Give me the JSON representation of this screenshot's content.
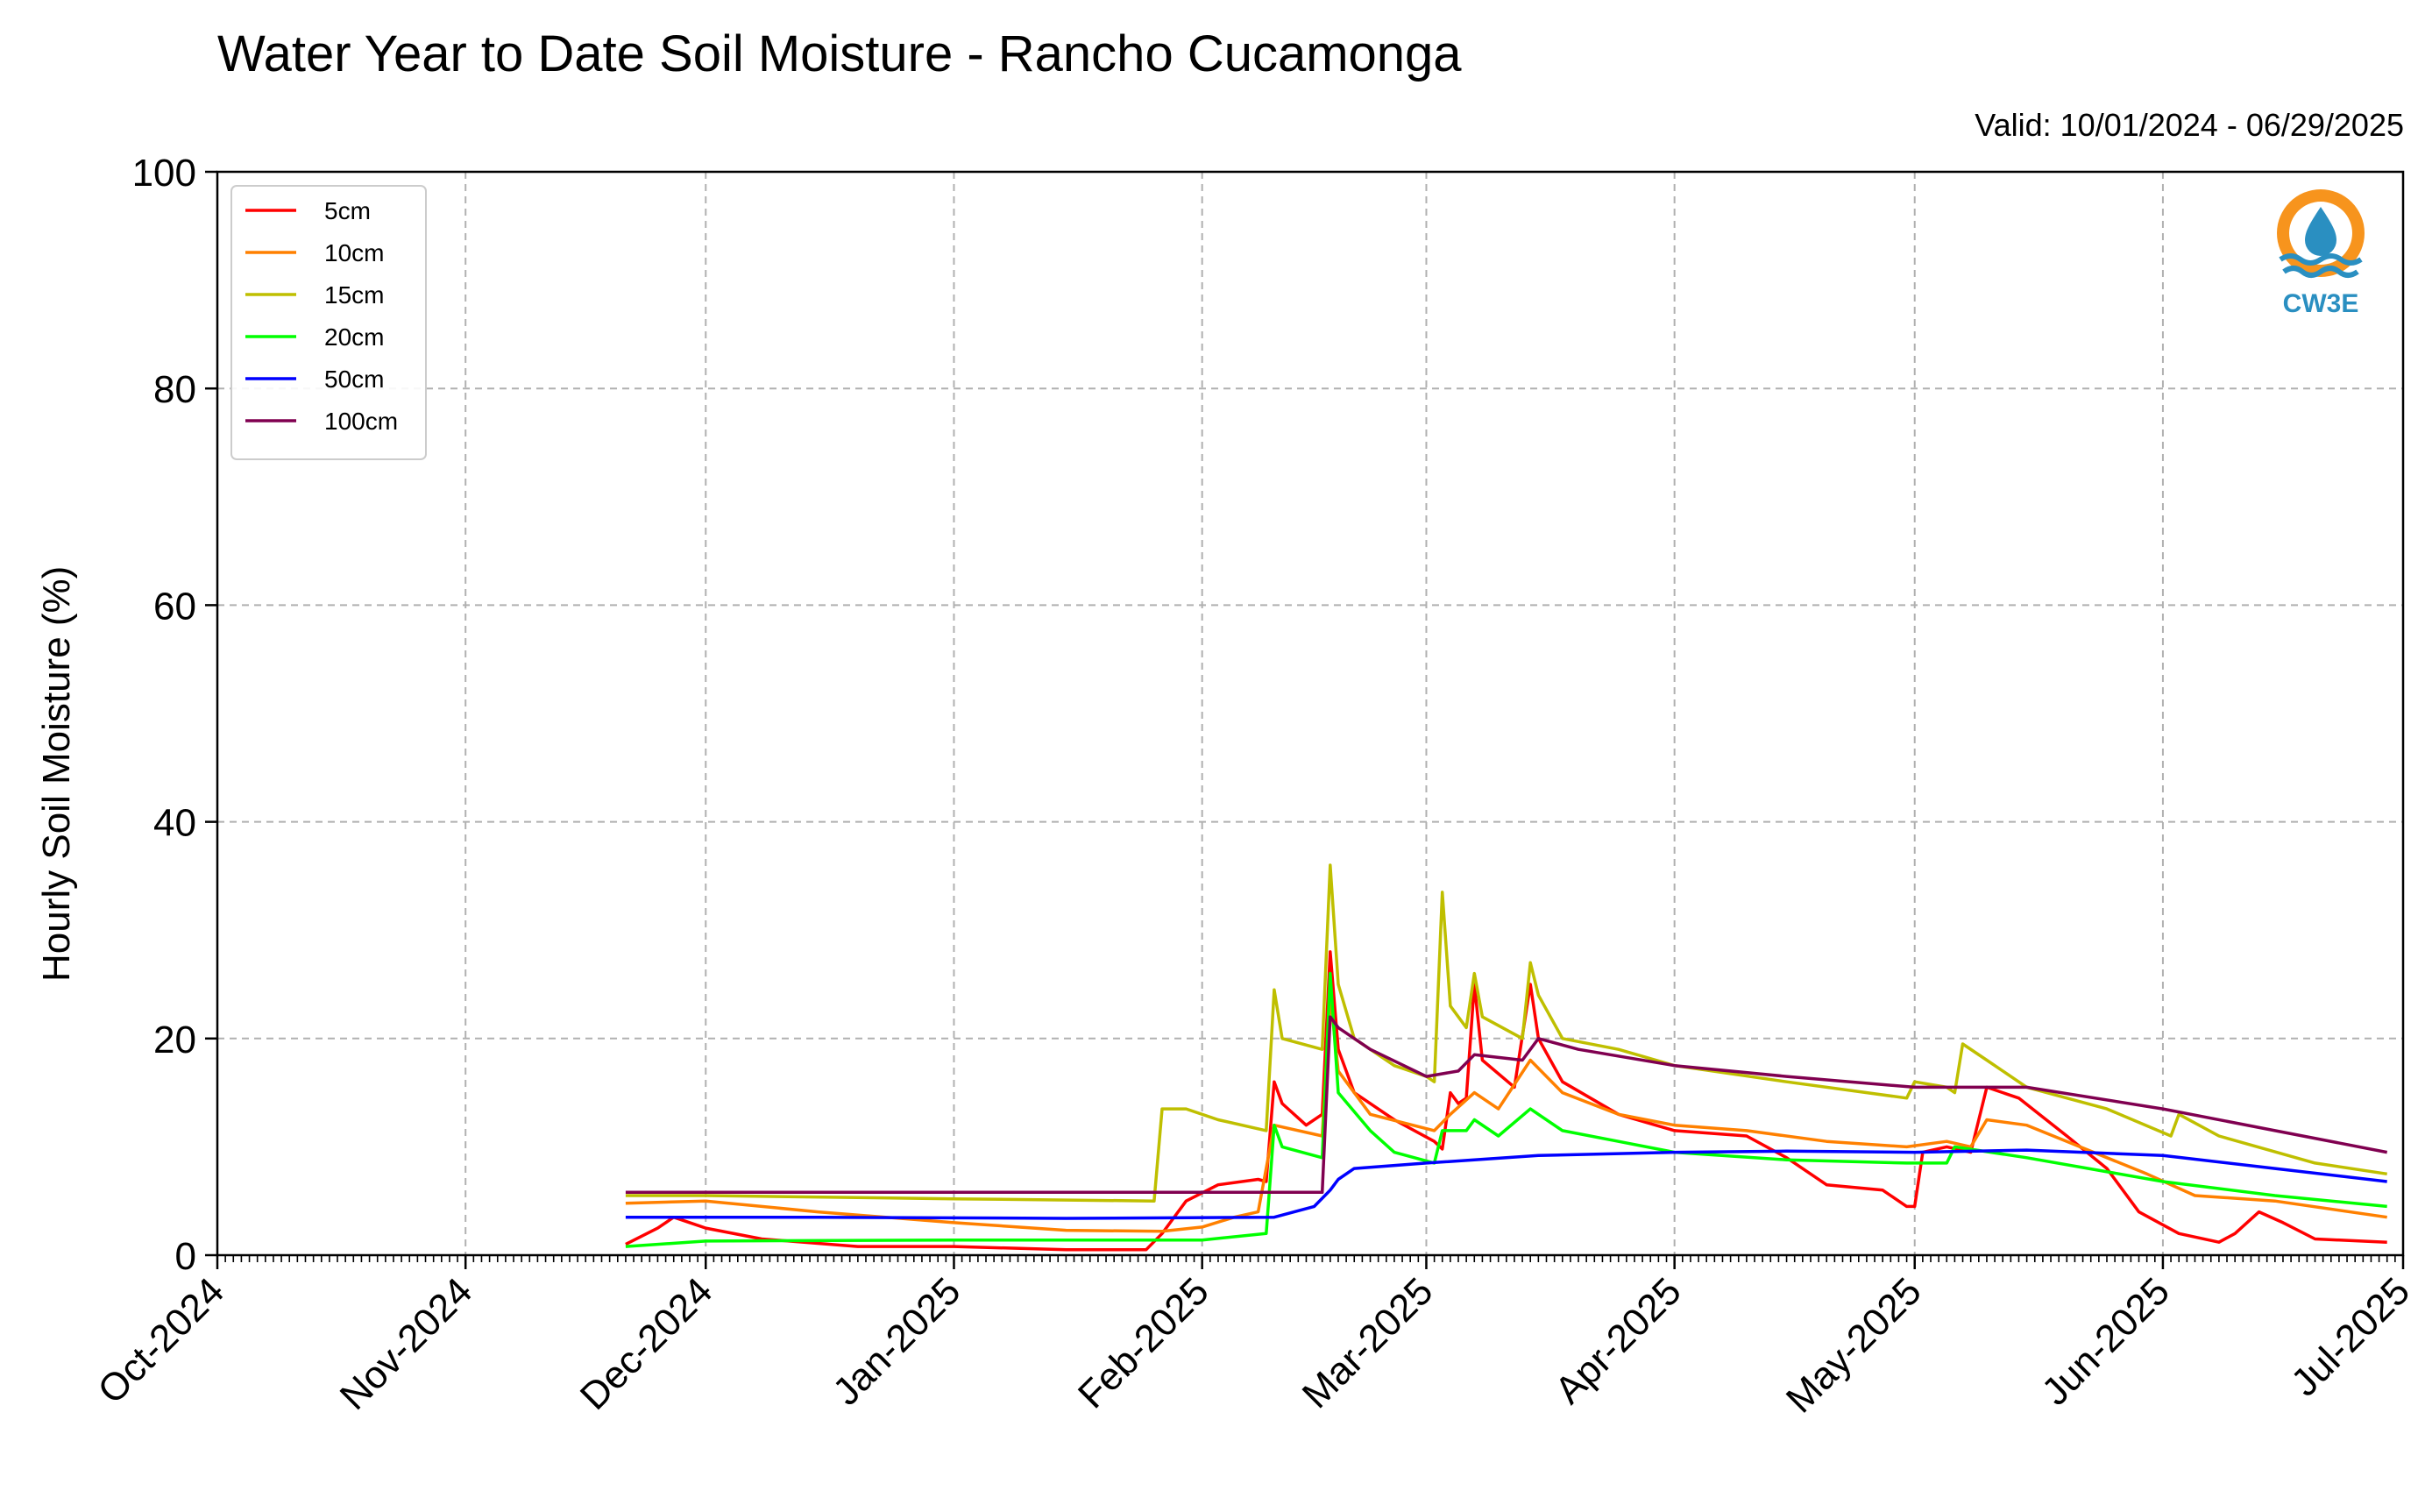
{
  "chart_data": {
    "type": "line",
    "title": "Water Year to Date Soil Moisture - Rancho Cucamonga",
    "subtitle": "Valid: 10/01/2024 - 06/29/2025",
    "ylabel": "Hourly Soil Moisture (%)",
    "xlabel": "",
    "ylim": [
      0,
      100
    ],
    "yticks": [
      0,
      20,
      40,
      60,
      80,
      100
    ],
    "xlim": [
      "2024-10-01",
      "2025-07-01"
    ],
    "xticks": [
      "2024-10-01",
      "2024-11-01",
      "2024-12-01",
      "2025-01-01",
      "2025-02-01",
      "2025-03-01",
      "2025-04-01",
      "2025-05-01",
      "2025-06-01",
      "2025-07-01"
    ],
    "xtick_labels": [
      "Oct-2024",
      "Nov-2024",
      "Dec-2024",
      "Jan-2025",
      "Feb-2025",
      "Mar-2025",
      "Apr-2025",
      "May-2025",
      "Jun-2025",
      "Jul-2025"
    ],
    "grid": true,
    "legend_position": "top-left",
    "logo_text": "CW3E",
    "series": [
      {
        "name": "5cm",
        "color": "#ff0000",
        "points": [
          [
            "2024-11-21",
            1.0
          ],
          [
            "2024-11-25",
            2.5
          ],
          [
            "2024-11-27",
            3.5
          ],
          [
            "2024-12-01",
            2.5
          ],
          [
            "2024-12-08",
            1.5
          ],
          [
            "2024-12-20",
            0.8
          ],
          [
            "2025-01-01",
            0.8
          ],
          [
            "2025-01-15",
            0.5
          ],
          [
            "2025-01-25",
            0.5
          ],
          [
            "2025-01-27",
            2.0
          ],
          [
            "2025-01-30",
            5.0
          ],
          [
            "2025-02-03",
            6.5
          ],
          [
            "2025-02-08",
            7.0
          ],
          [
            "2025-02-09",
            6.8
          ],
          [
            "2025-02-10",
            16.0
          ],
          [
            "2025-02-11",
            14.0
          ],
          [
            "2025-02-14",
            12.0
          ],
          [
            "2025-02-16",
            13.0
          ],
          [
            "2025-02-17",
            28.0
          ],
          [
            "2025-02-18",
            19.0
          ],
          [
            "2025-02-20",
            15.0
          ],
          [
            "2025-02-25",
            12.5
          ],
          [
            "2025-03-02",
            10.5
          ],
          [
            "2025-03-03",
            9.8
          ],
          [
            "2025-03-04",
            15.0
          ],
          [
            "2025-03-05",
            14.0
          ],
          [
            "2025-03-06",
            14.5
          ],
          [
            "2025-03-07",
            25.0
          ],
          [
            "2025-03-08",
            18.0
          ],
          [
            "2025-03-12",
            15.5
          ],
          [
            "2025-03-14",
            25.0
          ],
          [
            "2025-03-15",
            20.0
          ],
          [
            "2025-03-18",
            16.0
          ],
          [
            "2025-03-25",
            13.0
          ],
          [
            "2025-04-01",
            11.5
          ],
          [
            "2025-04-10",
            11.0
          ],
          [
            "2025-04-15",
            9.0
          ],
          [
            "2025-04-20",
            6.5
          ],
          [
            "2025-04-27",
            6.0
          ],
          [
            "2025-04-30",
            4.5
          ],
          [
            "2025-05-01",
            4.5
          ],
          [
            "2025-05-02",
            9.5
          ],
          [
            "2025-05-05",
            10.0
          ],
          [
            "2025-05-08",
            9.5
          ],
          [
            "2025-05-10",
            15.5
          ],
          [
            "2025-05-14",
            14.5
          ],
          [
            "2025-05-20",
            11.0
          ],
          [
            "2025-05-25",
            8.0
          ],
          [
            "2025-05-29",
            4.0
          ],
          [
            "2025-06-03",
            2.0
          ],
          [
            "2025-06-08",
            1.2
          ],
          [
            "2025-06-10",
            2.0
          ],
          [
            "2025-06-13",
            4.0
          ],
          [
            "2025-06-16",
            3.0
          ],
          [
            "2025-06-20",
            1.5
          ],
          [
            "2025-06-29",
            1.2
          ]
        ]
      },
      {
        "name": "10cm",
        "color": "#ff8000",
        "points": [
          [
            "2024-11-21",
            4.8
          ],
          [
            "2024-12-01",
            5.0
          ],
          [
            "2024-12-15",
            4.0
          ],
          [
            "2025-01-01",
            3.0
          ],
          [
            "2025-01-15",
            2.3
          ],
          [
            "2025-01-27",
            2.2
          ],
          [
            "2025-02-01",
            2.6
          ],
          [
            "2025-02-05",
            3.5
          ],
          [
            "2025-02-08",
            4.0
          ],
          [
            "2025-02-10",
            12.0
          ],
          [
            "2025-02-16",
            11.0
          ],
          [
            "2025-02-17",
            24.0
          ],
          [
            "2025-02-18",
            17.0
          ],
          [
            "2025-02-22",
            13.0
          ],
          [
            "2025-03-02",
            11.5
          ],
          [
            "2025-03-04",
            13.0
          ],
          [
            "2025-03-07",
            15.0
          ],
          [
            "2025-03-10",
            13.5
          ],
          [
            "2025-03-14",
            18.0
          ],
          [
            "2025-03-18",
            15.0
          ],
          [
            "2025-03-25",
            13.0
          ],
          [
            "2025-04-01",
            12.0
          ],
          [
            "2025-04-10",
            11.5
          ],
          [
            "2025-04-20",
            10.5
          ],
          [
            "2025-04-30",
            10.0
          ],
          [
            "2025-05-05",
            10.5
          ],
          [
            "2025-05-08",
            10.0
          ],
          [
            "2025-05-10",
            12.5
          ],
          [
            "2025-05-15",
            12.0
          ],
          [
            "2025-05-20",
            10.5
          ],
          [
            "2025-05-30",
            7.5
          ],
          [
            "2025-06-05",
            5.5
          ],
          [
            "2025-06-15",
            5.0
          ],
          [
            "2025-06-29",
            3.5
          ]
        ]
      },
      {
        "name": "15cm",
        "color": "#bfbf00",
        "points": [
          [
            "2024-11-21",
            5.5
          ],
          [
            "2024-12-01",
            5.5
          ],
          [
            "2025-01-01",
            5.2
          ],
          [
            "2025-01-26",
            5.0
          ],
          [
            "2025-01-27",
            13.5
          ],
          [
            "2025-01-30",
            13.5
          ],
          [
            "2025-02-03",
            12.5
          ],
          [
            "2025-02-09",
            11.5
          ],
          [
            "2025-02-10",
            24.5
          ],
          [
            "2025-02-11",
            20.0
          ],
          [
            "2025-02-16",
            19.0
          ],
          [
            "2025-02-17",
            36.0
          ],
          [
            "2025-02-18",
            25.0
          ],
          [
            "2025-02-20",
            20.0
          ],
          [
            "2025-02-25",
            17.5
          ],
          [
            "2025-03-01",
            16.5
          ],
          [
            "2025-03-02",
            16.0
          ],
          [
            "2025-03-03",
            33.5
          ],
          [
            "2025-03-04",
            23.0
          ],
          [
            "2025-03-06",
            21.0
          ],
          [
            "2025-03-07",
            26.0
          ],
          [
            "2025-03-08",
            22.0
          ],
          [
            "2025-03-13",
            20.0
          ],
          [
            "2025-03-14",
            27.0
          ],
          [
            "2025-03-15",
            24.0
          ],
          [
            "2025-03-18",
            20.0
          ],
          [
            "2025-03-25",
            19.0
          ],
          [
            "2025-04-01",
            17.5
          ],
          [
            "2025-04-15",
            16.0
          ],
          [
            "2025-04-30",
            14.5
          ],
          [
            "2025-05-01",
            16.0
          ],
          [
            "2025-05-05",
            15.5
          ],
          [
            "2025-05-06",
            15.0
          ],
          [
            "2025-05-07",
            19.5
          ],
          [
            "2025-05-10",
            18.0
          ],
          [
            "2025-05-15",
            15.5
          ],
          [
            "2025-05-25",
            13.5
          ],
          [
            "2025-06-02",
            11.0
          ],
          [
            "2025-06-03",
            13.0
          ],
          [
            "2025-06-08",
            11.0
          ],
          [
            "2025-06-20",
            8.5
          ],
          [
            "2025-06-29",
            7.5
          ]
        ]
      },
      {
        "name": "20cm",
        "color": "#00ff00",
        "points": [
          [
            "2024-11-21",
            0.8
          ],
          [
            "2024-12-01",
            1.3
          ],
          [
            "2025-01-01",
            1.4
          ],
          [
            "2025-01-15",
            1.4
          ],
          [
            "2025-02-01",
            1.4
          ],
          [
            "2025-02-09",
            2.0
          ],
          [
            "2025-02-10",
            12.0
          ],
          [
            "2025-02-11",
            10.0
          ],
          [
            "2025-02-16",
            9.0
          ],
          [
            "2025-02-17",
            26.0
          ],
          [
            "2025-02-18",
            15.0
          ],
          [
            "2025-02-22",
            11.5
          ],
          [
            "2025-02-25",
            9.5
          ],
          [
            "2025-03-02",
            8.5
          ],
          [
            "2025-03-03",
            11.5
          ],
          [
            "2025-03-06",
            11.5
          ],
          [
            "2025-03-07",
            12.5
          ],
          [
            "2025-03-10",
            11.0
          ],
          [
            "2025-03-14",
            13.5
          ],
          [
            "2025-03-18",
            11.5
          ],
          [
            "2025-03-25",
            10.5
          ],
          [
            "2025-04-01",
            9.5
          ],
          [
            "2025-04-15",
            8.8
          ],
          [
            "2025-04-30",
            8.5
          ],
          [
            "2025-05-05",
            8.5
          ],
          [
            "2025-05-06",
            10.0
          ],
          [
            "2025-05-15",
            9.0
          ],
          [
            "2025-06-01",
            6.8
          ],
          [
            "2025-06-15",
            5.5
          ],
          [
            "2025-06-29",
            4.5
          ]
        ]
      },
      {
        "name": "50cm",
        "color": "#0000ff",
        "points": [
          [
            "2024-11-21",
            3.5
          ],
          [
            "2024-12-15",
            3.5
          ],
          [
            "2025-01-15",
            3.4
          ],
          [
            "2025-02-10",
            3.5
          ],
          [
            "2025-02-15",
            4.5
          ],
          [
            "2025-02-17",
            6.0
          ],
          [
            "2025-02-18",
            7.0
          ],
          [
            "2025-02-20",
            8.0
          ],
          [
            "2025-03-01",
            8.5
          ],
          [
            "2025-03-15",
            9.2
          ],
          [
            "2025-04-01",
            9.5
          ],
          [
            "2025-04-15",
            9.6
          ],
          [
            "2025-05-01",
            9.5
          ],
          [
            "2025-05-15",
            9.7
          ],
          [
            "2025-06-01",
            9.2
          ],
          [
            "2025-06-15",
            8.0
          ],
          [
            "2025-06-29",
            6.8
          ]
        ]
      },
      {
        "name": "100cm",
        "color": "#800050",
        "points": [
          [
            "2024-11-21",
            5.8
          ],
          [
            "2024-12-15",
            5.8
          ],
          [
            "2025-01-15",
            5.8
          ],
          [
            "2025-02-16",
            5.8
          ],
          [
            "2025-02-17",
            22.0
          ],
          [
            "2025-02-18",
            21.0
          ],
          [
            "2025-02-22",
            19.0
          ],
          [
            "2025-03-01",
            16.5
          ],
          [
            "2025-03-05",
            17.0
          ],
          [
            "2025-03-07",
            18.5
          ],
          [
            "2025-03-13",
            18.0
          ],
          [
            "2025-03-15",
            20.0
          ],
          [
            "2025-03-20",
            19.0
          ],
          [
            "2025-04-01",
            17.5
          ],
          [
            "2025-04-15",
            16.5
          ],
          [
            "2025-05-01",
            15.5
          ],
          [
            "2025-05-15",
            15.5
          ],
          [
            "2025-06-01",
            13.5
          ],
          [
            "2025-06-15",
            11.5
          ],
          [
            "2025-06-29",
            9.5
          ]
        ]
      }
    ]
  }
}
